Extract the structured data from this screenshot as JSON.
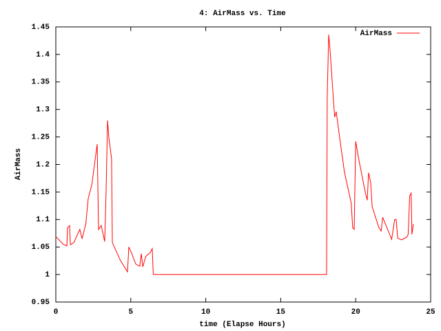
{
  "chart_data": {
    "type": "line",
    "title": "4: AirMass vs. Time",
    "x_label": "time (Elapse Hours)",
    "y_label": "AirMass",
    "x": [
      0,
      0.5,
      0.74,
      0.78,
      0.92,
      0.97,
      1.2,
      1.6,
      1.75,
      2.0,
      2.16,
      2.4,
      2.76,
      2.85,
      3.03,
      3.26,
      3.35,
      3.45,
      3.54,
      3.72,
      3.77,
      4.32,
      4.78,
      4.87,
      5.05,
      5.33,
      5.6,
      5.7,
      5.8,
      6.0,
      6.3,
      6.43,
      6.5,
      18.06,
      18.1,
      18.2,
      18.3,
      18.5,
      18.6,
      18.7,
      18.9,
      19.25,
      19.7,
      19.8,
      19.9,
      20.0,
      20.2,
      20.65,
      20.77,
      20.86,
      21.0,
      21.1,
      21.55,
      21.7,
      21.8,
      22.4,
      22.6,
      22.7,
      22.8,
      23.07,
      23.4,
      23.5,
      23.6,
      23.7,
      23.75,
      23.85
    ],
    "series": [
      {
        "name": "AirMass",
        "color": "#ff0000",
        "values": [
          1.069,
          1.055,
          1.052,
          1.085,
          1.089,
          1.054,
          1.058,
          1.082,
          1.065,
          1.092,
          1.138,
          1.163,
          1.237,
          1.082,
          1.089,
          1.06,
          1.148,
          1.28,
          1.248,
          1.21,
          1.058,
          1.025,
          1.005,
          1.05,
          1.039,
          1.019,
          1.015,
          1.038,
          1.014,
          1.033,
          1.04,
          1.047,
          1.0,
          1.0,
          1.323,
          1.436,
          1.405,
          1.323,
          1.286,
          1.296,
          1.255,
          1.186,
          1.13,
          1.085,
          1.082,
          1.242,
          1.21,
          1.148,
          1.135,
          1.185,
          1.167,
          1.123,
          1.085,
          1.079,
          1.104,
          1.064,
          1.1,
          1.1,
          1.066,
          1.063,
          1.068,
          1.073,
          1.143,
          1.148,
          1.073,
          1.092
        ]
      }
    ],
    "xlim": [
      0,
      25
    ],
    "xticks": [
      0,
      5,
      10,
      15,
      20,
      25
    ],
    "ylim": [
      0.95,
      1.45
    ],
    "yticks": [
      0.95,
      1,
      1.05,
      1.1,
      1.15,
      1.2,
      1.25,
      1.3,
      1.35,
      1.4,
      1.45
    ],
    "legend": "top-right",
    "grid": false
  }
}
